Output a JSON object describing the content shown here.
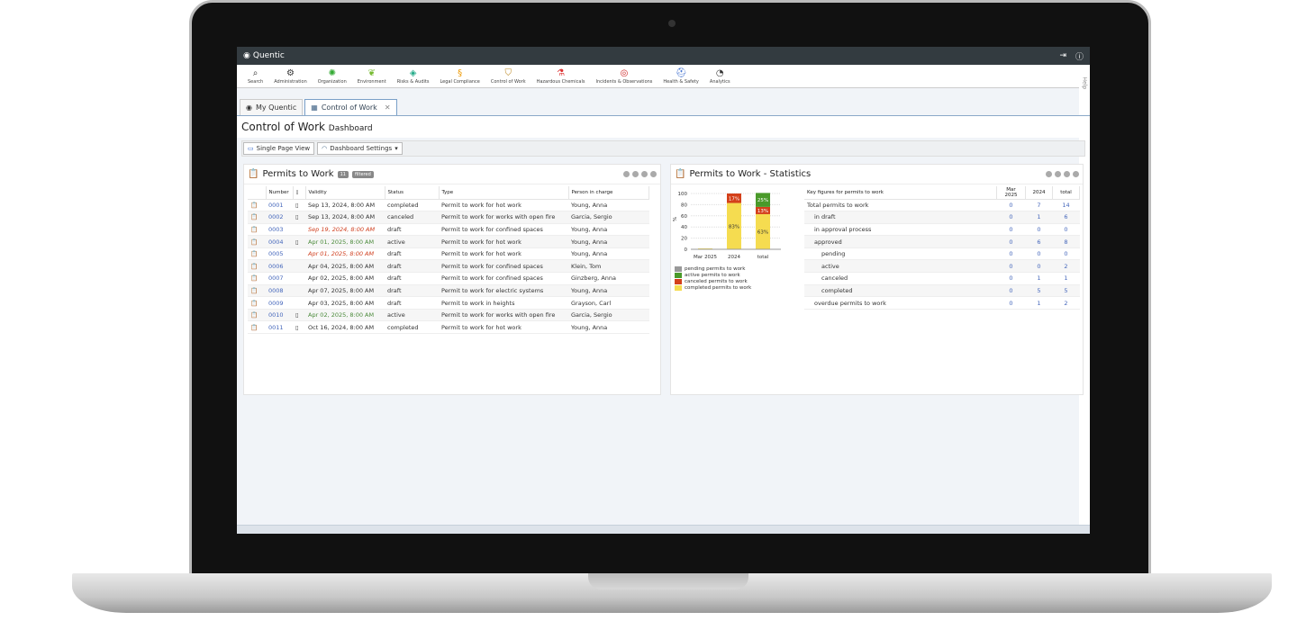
{
  "app": {
    "title": "Quentic"
  },
  "nav": [
    {
      "label": "Search",
      "icon": "search-icon",
      "color": "#333"
    },
    {
      "label": "Administration",
      "icon": "gear-icon",
      "color": "#333"
    },
    {
      "label": "Organization",
      "icon": "organization-icon",
      "color": "#3a3"
    },
    {
      "label": "Environment",
      "icon": "leaf-icon",
      "color": "#7b3"
    },
    {
      "label": "Risks & Audits",
      "icon": "risk-icon",
      "color": "#2a8"
    },
    {
      "label": "Legal Compliance",
      "icon": "paragraph-icon",
      "color": "#e90"
    },
    {
      "label": "Control of Work",
      "icon": "shield-icon",
      "color": "#b82"
    },
    {
      "label": "Hazardous Chemicals",
      "icon": "flask-icon",
      "color": "#d33"
    },
    {
      "label": "Incidents & Observations",
      "icon": "incident-icon",
      "color": "#c22"
    },
    {
      "label": "Health & Safety",
      "icon": "helmet-icon",
      "color": "#36c"
    },
    {
      "label": "Analytics",
      "icon": "chart-icon",
      "color": "#333"
    }
  ],
  "tabs": [
    {
      "label": "My Quentic"
    },
    {
      "label": "Control of Work"
    }
  ],
  "page": {
    "title": "Control of Work",
    "subtitle": "Dashboard"
  },
  "toolbar": {
    "single_page": "Single Page View",
    "settings": "Dashboard Settings"
  },
  "help": "Help",
  "permits": {
    "title": "Permits to Work",
    "count": "11",
    "filter": "filtered",
    "columns": [
      "Number",
      "Validity",
      "Status",
      "Type",
      "Person in charge"
    ],
    "rows": [
      {
        "number": "0001",
        "doc": true,
        "validity": "Sep 13, 2024, 8:00 AM",
        "vstate": "",
        "status": "completed",
        "type": "Permit to work for hot work",
        "person": "Young, Anna"
      },
      {
        "number": "0002",
        "doc": true,
        "validity": "Sep 13, 2024, 8:00 AM",
        "vstate": "",
        "status": "canceled",
        "type": "Permit to work for works with open fire",
        "person": "Garcia, Sergio"
      },
      {
        "number": "0003",
        "doc": false,
        "validity": "Sep 19, 2024, 8:00 AM",
        "vstate": "overdue",
        "status": "draft",
        "type": "Permit to work for confined spaces",
        "person": "Young, Anna"
      },
      {
        "number": "0004",
        "doc": true,
        "validity": "Apr 01, 2025, 8:00 AM",
        "vstate": "current",
        "status": "active",
        "type": "Permit to work for hot work",
        "person": "Young, Anna"
      },
      {
        "number": "0005",
        "doc": false,
        "validity": "Apr 01, 2025, 8:00 AM",
        "vstate": "overdue",
        "status": "draft",
        "type": "Permit to work for hot work",
        "person": "Young, Anna"
      },
      {
        "number": "0006",
        "doc": false,
        "validity": "Apr 04, 2025, 8:00 AM",
        "vstate": "",
        "status": "draft",
        "type": "Permit to work for confined spaces",
        "person": "Klein, Tom"
      },
      {
        "number": "0007",
        "doc": false,
        "validity": "Apr 02, 2025, 8:00 AM",
        "vstate": "",
        "status": "draft",
        "type": "Permit to work for confined spaces",
        "person": "Ginzberg, Anna"
      },
      {
        "number": "0008",
        "doc": false,
        "validity": "Apr 07, 2025, 8:00 AM",
        "vstate": "",
        "status": "draft",
        "type": "Permit to work for electric systems",
        "person": "Young, Anna"
      },
      {
        "number": "0009",
        "doc": false,
        "validity": "Apr 03, 2025, 8:00 AM",
        "vstate": "",
        "status": "draft",
        "type": "Permit to work in heights",
        "person": "Grayson, Carl"
      },
      {
        "number": "0010",
        "doc": true,
        "validity": "Apr 02, 2025, 8:00 AM",
        "vstate": "current",
        "status": "active",
        "type": "Permit to work for works with open fire",
        "person": "Garcia, Sergio"
      },
      {
        "number": "0011",
        "doc": true,
        "validity": "Oct 16, 2024, 8:00 AM",
        "vstate": "",
        "status": "completed",
        "type": "Permit to work for hot work",
        "person": "Young, Anna"
      }
    ]
  },
  "stats": {
    "title": "Permits to Work - Statistics",
    "columns": [
      "Key figures for permits to work",
      "Mar 2025",
      "2024",
      "total"
    ],
    "rows": [
      {
        "label": "Total permits to work",
        "level": 0,
        "v": [
          "0",
          "7",
          "14"
        ]
      },
      {
        "label": "in draft",
        "level": 1,
        "v": [
          "0",
          "1",
          "6"
        ]
      },
      {
        "label": "in approval process",
        "level": 1,
        "v": [
          "0",
          "0",
          "0"
        ]
      },
      {
        "label": "approved",
        "level": 1,
        "v": [
          "0",
          "6",
          "8"
        ]
      },
      {
        "label": "pending",
        "level": 2,
        "v": [
          "0",
          "0",
          "0"
        ]
      },
      {
        "label": "active",
        "level": 2,
        "v": [
          "0",
          "0",
          "2"
        ]
      },
      {
        "label": "canceled",
        "level": 2,
        "v": [
          "0",
          "1",
          "1"
        ]
      },
      {
        "label": "completed",
        "level": 2,
        "v": [
          "0",
          "5",
          "5"
        ]
      },
      {
        "label": "overdue permits to work",
        "level": 1,
        "v": [
          "0",
          "1",
          "2"
        ]
      }
    ]
  },
  "chart_data": {
    "type": "bar",
    "stacked": true,
    "categories": [
      "Mar 2025",
      "2024",
      "total"
    ],
    "ylabel": "%",
    "ylim": [
      0,
      100
    ],
    "yticks": [
      0,
      20,
      40,
      60,
      80,
      100
    ],
    "grid": true,
    "legend": "bottom",
    "series": [
      {
        "name": "pending permits to work",
        "color": "#999999",
        "values": [
          0,
          0,
          0
        ]
      },
      {
        "name": "active permits to work",
        "color": "#4a9a2a",
        "values": [
          0,
          0,
          25
        ]
      },
      {
        "name": "canceled permits to work",
        "color": "#d4401a",
        "values": [
          0,
          17,
          13
        ]
      },
      {
        "name": "completed permits to work",
        "color": "#f5dc50",
        "values": [
          0,
          83,
          63
        ]
      }
    ],
    "labels": [
      [],
      [
        "83%",
        "17%"
      ],
      [
        "63%",
        "13%",
        "25%"
      ]
    ]
  }
}
